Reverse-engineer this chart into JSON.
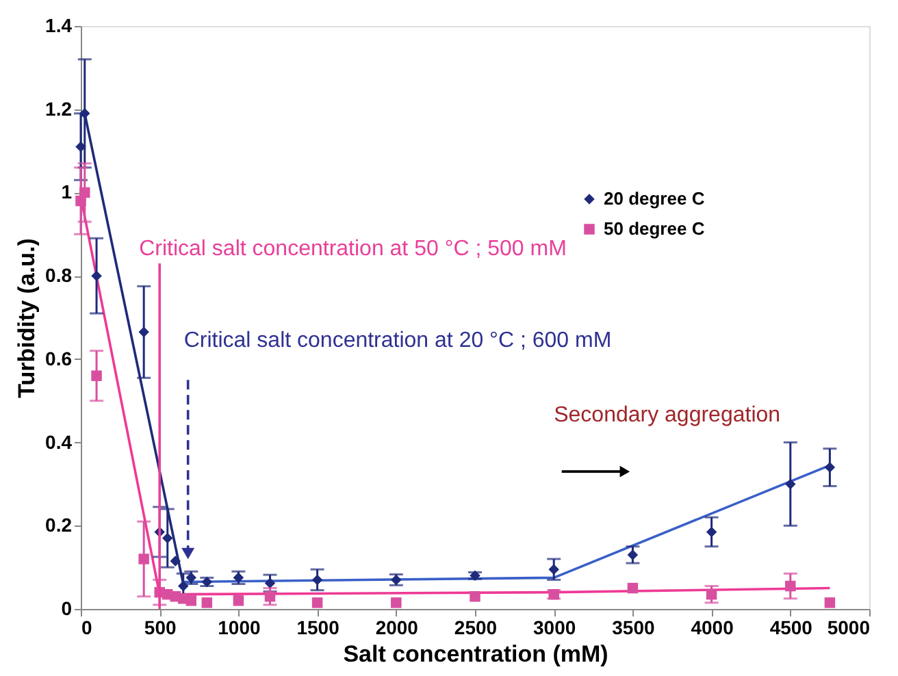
{
  "chart_data": {
    "type": "scatter",
    "xlabel": "Salt concentration (mM)",
    "ylabel": "Turbidity (a.u.)",
    "xlim": [
      0,
      5000
    ],
    "xticks": [
      0,
      500,
      1000,
      1500,
      2000,
      2500,
      3000,
      3500,
      4000,
      4500,
      5000
    ],
    "ylim": [
      0,
      1.4
    ],
    "yticks": [
      0,
      0.2,
      0.4,
      0.6,
      0.8,
      1,
      1.2,
      1.4
    ],
    "grid": false,
    "legend": "top right",
    "series": [
      {
        "name": "20 degree C",
        "color": "#1f2a7a",
        "marker": "diamond",
        "x": [
          0,
          25,
          100,
          400,
          500,
          550,
          600,
          650,
          700,
          800,
          1000,
          1200,
          1500,
          2000,
          2500,
          3000,
          3500,
          4000,
          4500,
          4750
        ],
        "values": [
          1.11,
          1.19,
          0.8,
          0.665,
          0.185,
          0.17,
          0.115,
          0.055,
          0.075,
          0.065,
          0.075,
          0.062,
          0.07,
          0.07,
          0.08,
          0.095,
          0.13,
          0.185,
          0.3,
          0.34
        ],
        "errors": [
          0.08,
          0.13,
          0.09,
          0.11,
          0.06,
          0.07,
          null,
          0.03,
          0.015,
          0.01,
          0.015,
          0.02,
          0.025,
          0.013,
          0.008,
          0.025,
          0.02,
          0.035,
          0.1,
          0.045
        ]
      },
      {
        "name": "50 degree C",
        "color": "#d94fa0",
        "marker": "square",
        "x": [
          0,
          25,
          100,
          400,
          500,
          550,
          600,
          650,
          700,
          800,
          1000,
          1200,
          1500,
          2000,
          2500,
          3000,
          3500,
          4000,
          4500,
          4750
        ],
        "values": [
          0.98,
          1.0,
          0.56,
          0.12,
          0.04,
          0.035,
          0.03,
          0.025,
          0.02,
          0.015,
          0.02,
          0.03,
          0.015,
          0.015,
          0.03,
          0.035,
          0.05,
          0.035,
          0.055,
          0.015
        ],
        "errors": [
          0.08,
          0.07,
          0.06,
          0.09,
          0.03,
          null,
          null,
          null,
          null,
          null,
          null,
          0.02,
          null,
          null,
          null,
          0.01,
          null,
          0.02,
          0.03,
          null
        ]
      },
      {
        "type": "line",
        "color": "#1f2a7a",
        "x": [
          25,
          650
        ],
        "values": [
          1.19,
          0.06
        ]
      },
      {
        "type": "line",
        "color": "#3a5fc8",
        "x": [
          650,
          3000,
          4750
        ],
        "values": [
          0.065,
          0.075,
          0.345
        ]
      },
      {
        "type": "line",
        "color": "#ee3a95",
        "x": [
          0,
          500,
          3000,
          4750
        ],
        "values": [
          0.99,
          0.035,
          0.04,
          0.05
        ]
      }
    ],
    "annotations": [
      "Critical salt concentration at 50 °C ; 500 mM",
      "Critical salt concentration at 20 °C ; 600 mM",
      "Secondary aggregation"
    ]
  }
}
